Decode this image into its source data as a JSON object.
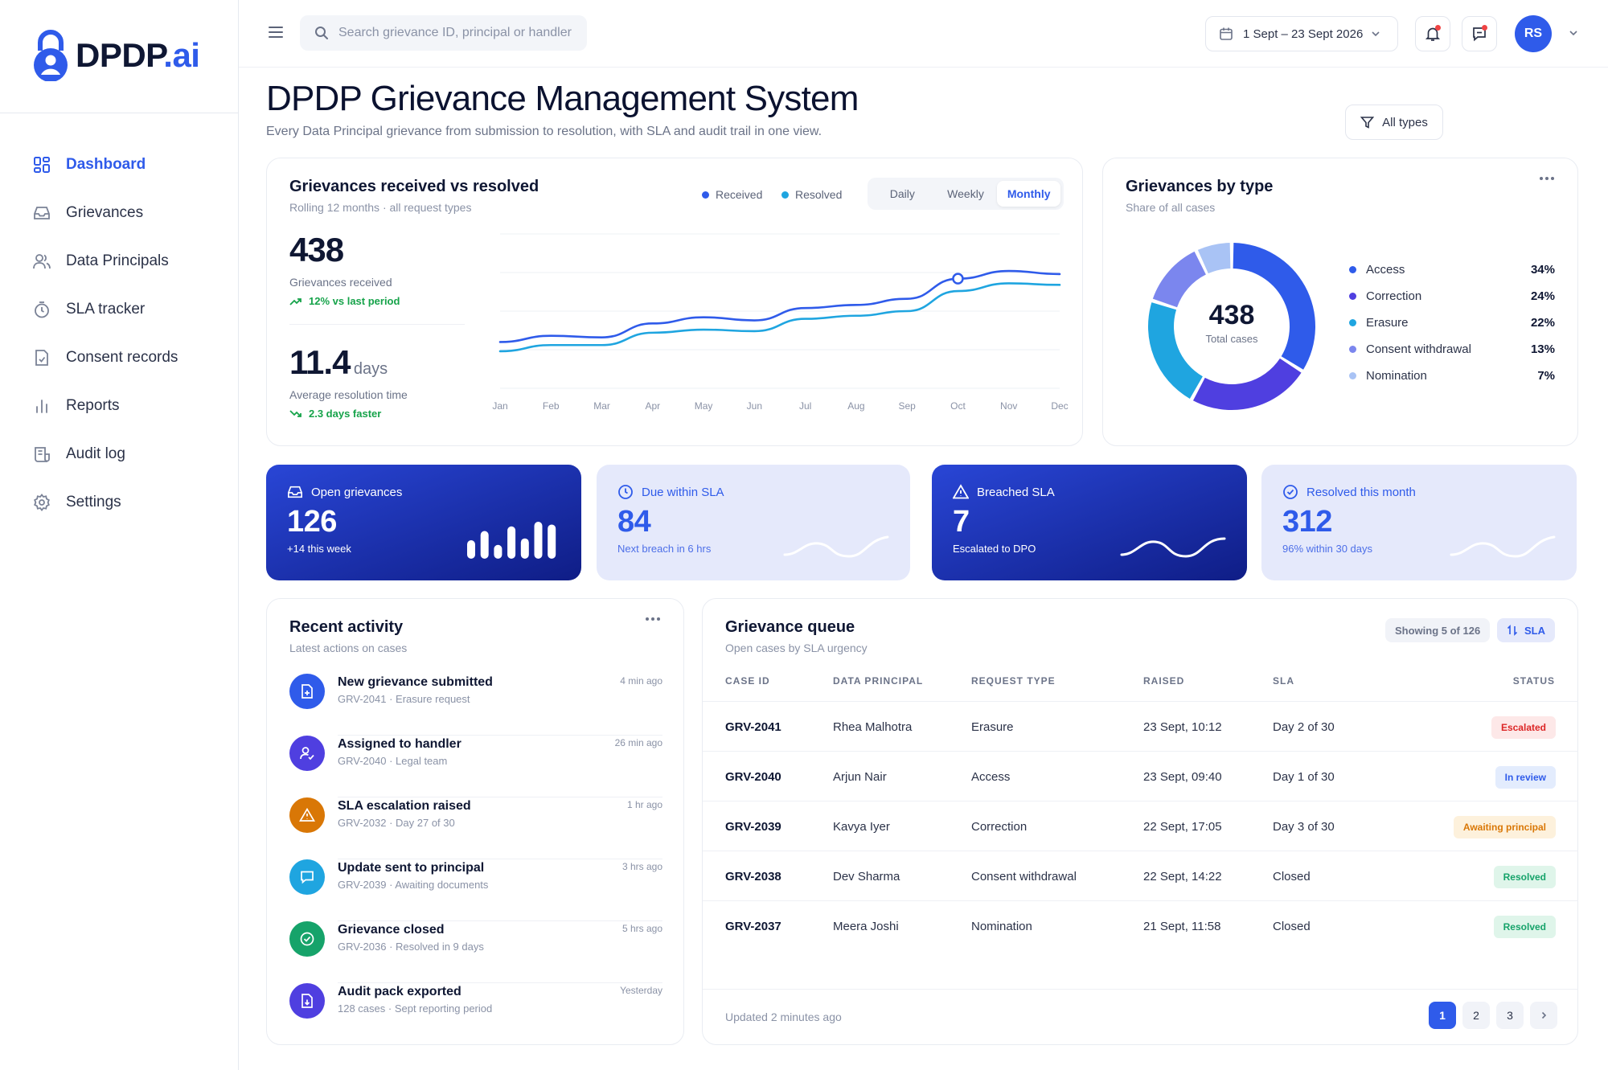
{
  "brand": {
    "name": "DPDP",
    "suffix": ".ai"
  },
  "sidebar": {
    "items": [
      {
        "label": "Dashboard",
        "icon": "dashboard-icon",
        "active": true
      },
      {
        "label": "Grievances",
        "icon": "inbox-icon"
      },
      {
        "label": "Data Principals",
        "icon": "users-icon"
      },
      {
        "label": "SLA tracker",
        "icon": "stopwatch-icon"
      },
      {
        "label": "Consent records",
        "icon": "document-check-icon"
      },
      {
        "label": "Reports",
        "icon": "bar-chart-icon"
      },
      {
        "label": "Audit log",
        "icon": "scroll-icon"
      },
      {
        "label": "Settings",
        "icon": "gear-icon"
      }
    ]
  },
  "topbar": {
    "search_placeholder": "Search grievance ID, principal or handler",
    "date_range": "1 Sept – 23 Sept 2026",
    "avatar_initials": "RS"
  },
  "page": {
    "title": "DPDP Grievance Management System",
    "subtitle": "Every Data Principal grievance from submission to resolution, with SLA and audit trail in one view.",
    "filter_label": "All types"
  },
  "trend": {
    "title": "Grievances received vs resolved",
    "subtitle": "Rolling 12 months · all request types",
    "legend": [
      "Received",
      "Resolved"
    ],
    "tabs": [
      "Daily",
      "Weekly",
      "Monthly"
    ],
    "active_tab": "Monthly",
    "stat1_value": "438",
    "stat1_label": "Grievances received",
    "stat1_delta": "12% vs last period",
    "stat2_value": "11.4",
    "stat2_unit": "days",
    "stat2_label": "Average resolution time",
    "stat2_delta": "2.3 days faster"
  },
  "chart_data": [
    {
      "type": "line",
      "categories": [
        "Jan",
        "Feb",
        "Mar",
        "Apr",
        "May",
        "Jun",
        "Jul",
        "Aug",
        "Sep",
        "Oct",
        "Nov",
        "Dec"
      ],
      "series": [
        {
          "name": "Received",
          "color": "#2f5bea",
          "values": [
            30,
            34,
            33,
            42,
            46,
            44,
            52,
            54,
            58,
            71,
            76,
            74
          ]
        },
        {
          "name": "Resolved",
          "color": "#1fa5e0",
          "values": [
            24,
            28,
            28,
            36,
            38,
            37,
            45,
            47,
            50,
            63,
            68,
            67
          ]
        }
      ],
      "ylim": [
        0,
        100
      ],
      "highlight_index": 9,
      "grid": true
    },
    {
      "type": "pie",
      "title": "Grievances by type",
      "subtitle": "Share of all cases",
      "center_value": "438",
      "center_label": "Total cases",
      "slices": [
        {
          "label": "Access",
          "value": 34,
          "pct": "34%",
          "color": "#2f5bea"
        },
        {
          "label": "Correction",
          "value": 24,
          "pct": "24%",
          "color": "#4f3fe0"
        },
        {
          "label": "Erasure",
          "value": 22,
          "pct": "22%",
          "color": "#1fa5e0"
        },
        {
          "label": "Consent withdrawal",
          "value": 13,
          "pct": "13%",
          "color": "#7b86ee"
        },
        {
          "label": "Nomination",
          "value": 7,
          "pct": "7%",
          "color": "#a9c3f5"
        }
      ]
    },
    {
      "type": "bar",
      "values": [
        2,
        3,
        1.5,
        3.5,
        2.2,
        4,
        3.7
      ]
    }
  ],
  "kpis": [
    {
      "title": "Open grievances",
      "value": "126",
      "sub": "+14 this week",
      "icon": "inbox-icon"
    },
    {
      "title": "Due within SLA",
      "value": "84",
      "sub": "Next breach in 6 hrs",
      "icon": "clock-icon"
    },
    {
      "title": "Breached SLA",
      "value": "7",
      "sub": "Escalated to DPO",
      "icon": "warning-icon"
    },
    {
      "title": "Resolved this month",
      "value": "312",
      "sub": "96% within 30 days",
      "icon": "check-circle-icon"
    }
  ],
  "activity": {
    "title": "Recent activity",
    "subtitle": "Latest actions on cases",
    "items": [
      {
        "title": "New grievance submitted",
        "sub": "GRV-2041 · Erasure request",
        "time": "4 min ago",
        "icon": "file-plus-icon",
        "color": "#2f5bea"
      },
      {
        "title": "Assigned to handler",
        "sub": "GRV-2040 · Legal team",
        "time": "26 min ago",
        "icon": "user-check-icon",
        "color": "#4f3fe0"
      },
      {
        "title": "SLA escalation raised",
        "sub": "GRV-2032 · Day 27 of 30",
        "time": "1 hr ago",
        "icon": "warning-icon",
        "color": "#d97706"
      },
      {
        "title": "Update sent to principal",
        "sub": "GRV-2039 · Awaiting documents",
        "time": "3 hrs ago",
        "icon": "message-icon",
        "color": "#1fa5e0"
      },
      {
        "title": "Grievance closed",
        "sub": "GRV-2036 · Resolved in 9 days",
        "time": "5 hrs ago",
        "icon": "check-circle-icon",
        "color": "#16a36a"
      },
      {
        "title": "Audit pack exported",
        "sub": "128 cases · Sept reporting period",
        "time": "Yesterday",
        "icon": "file-download-icon",
        "color": "#4f3fe0"
      }
    ]
  },
  "queue": {
    "title": "Grievance queue",
    "subtitle": "Open cases by SLA urgency",
    "showing": "Showing 5 of 126",
    "sort_label": "SLA",
    "columns": [
      "CASE ID",
      "DATA PRINCIPAL",
      "REQUEST TYPE",
      "RAISED",
      "SLA",
      "STATUS"
    ],
    "rows": [
      {
        "id": "GRV-2041",
        "principal": "Rhea Malhotra",
        "type": "Erasure",
        "raised": "23 Sept, 10:12",
        "sla": "Day 2 of 30",
        "status": "Escalated",
        "status_kind": "red"
      },
      {
        "id": "GRV-2040",
        "principal": "Arjun Nair",
        "type": "Access",
        "raised": "23 Sept, 09:40",
        "sla": "Day 1 of 30",
        "status": "In review",
        "status_kind": "blue"
      },
      {
        "id": "GRV-2039",
        "principal": "Kavya Iyer",
        "type": "Correction",
        "raised": "22 Sept, 17:05",
        "sla": "Day 3 of 30",
        "status": "Awaiting principal",
        "status_kind": "amber"
      },
      {
        "id": "GRV-2038",
        "principal": "Dev Sharma",
        "type": "Consent withdrawal",
        "raised": "22 Sept, 14:22",
        "sla": "Closed",
        "status": "Resolved",
        "status_kind": "green"
      },
      {
        "id": "GRV-2037",
        "principal": "Meera Joshi",
        "type": "Nomination",
        "raised": "21 Sept, 11:58",
        "sla": "Closed",
        "status": "Resolved",
        "status_kind": "green"
      }
    ],
    "updated": "Updated 2 minutes ago",
    "pages": [
      "1",
      "2",
      "3"
    ],
    "active_page": "1"
  }
}
